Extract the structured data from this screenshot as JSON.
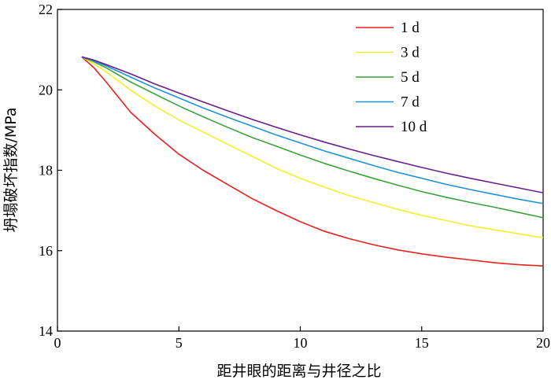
{
  "chart_data": {
    "type": "line",
    "xlabel": "距井眼的距离与井径之比",
    "ylabel": "坍塌破坏指数/MPa",
    "xlim": [
      0,
      20
    ],
    "ylim": [
      14,
      22
    ],
    "xticks": [
      0,
      5,
      10,
      15,
      20
    ],
    "yticks": [
      14,
      16,
      18,
      20,
      22
    ],
    "grid": false,
    "legend_position": "top-right",
    "x": [
      1,
      1.5,
      2,
      3,
      4,
      5,
      6,
      7,
      8,
      9,
      10,
      11,
      12,
      13,
      14,
      15,
      16,
      17,
      18,
      19,
      20
    ],
    "series": [
      {
        "name": "1 d",
        "color": "#e8201e",
        "values": [
          20.82,
          20.55,
          20.2,
          19.45,
          18.9,
          18.4,
          18.0,
          17.65,
          17.3,
          17.0,
          16.72,
          16.48,
          16.3,
          16.15,
          16.02,
          15.92,
          15.84,
          15.77,
          15.7,
          15.65,
          15.62
        ]
      },
      {
        "name": "3 d",
        "color": "#f2ef2c",
        "values": [
          20.82,
          20.65,
          20.45,
          20.0,
          19.6,
          19.25,
          18.95,
          18.65,
          18.35,
          18.05,
          17.8,
          17.58,
          17.37,
          17.2,
          17.03,
          16.88,
          16.75,
          16.62,
          16.52,
          16.42,
          16.32
        ]
      },
      {
        "name": "5 d",
        "color": "#3aa33a",
        "values": [
          20.82,
          20.7,
          20.55,
          20.2,
          19.9,
          19.6,
          19.33,
          19.07,
          18.82,
          18.6,
          18.38,
          18.17,
          17.98,
          17.8,
          17.63,
          17.47,
          17.33,
          17.2,
          17.08,
          16.95,
          16.82
        ]
      },
      {
        "name": "7 d",
        "color": "#1f92d6",
        "values": [
          20.82,
          20.72,
          20.6,
          20.32,
          20.05,
          19.8,
          19.55,
          19.32,
          19.1,
          18.88,
          18.68,
          18.48,
          18.3,
          18.12,
          17.95,
          17.8,
          17.65,
          17.52,
          17.4,
          17.28,
          17.17
        ]
      },
      {
        "name": "10 d",
        "color": "#6a1f8c",
        "values": [
          20.82,
          20.74,
          20.63,
          20.4,
          20.15,
          19.92,
          19.7,
          19.48,
          19.27,
          19.07,
          18.88,
          18.7,
          18.53,
          18.37,
          18.22,
          18.07,
          17.93,
          17.8,
          17.68,
          17.56,
          17.44
        ]
      }
    ]
  }
}
